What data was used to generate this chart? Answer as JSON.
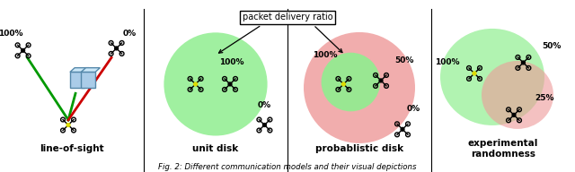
{
  "annotation_box": "packet delivery ratio",
  "background_color": "#ffffff",
  "green_color": "#009900",
  "red_color": "#cc0000",
  "disk_green": "#90ee90",
  "disk_red": "#ee9999",
  "drone_yellow": "#dddd00",
  "text_color": "#000000",
  "fig_caption": "Fig. 2: Different communication models and their visual depictions",
  "labels": [
    "line-of-sight",
    "unit disk",
    "probablistic disk",
    "experimental\nrandomness"
  ]
}
